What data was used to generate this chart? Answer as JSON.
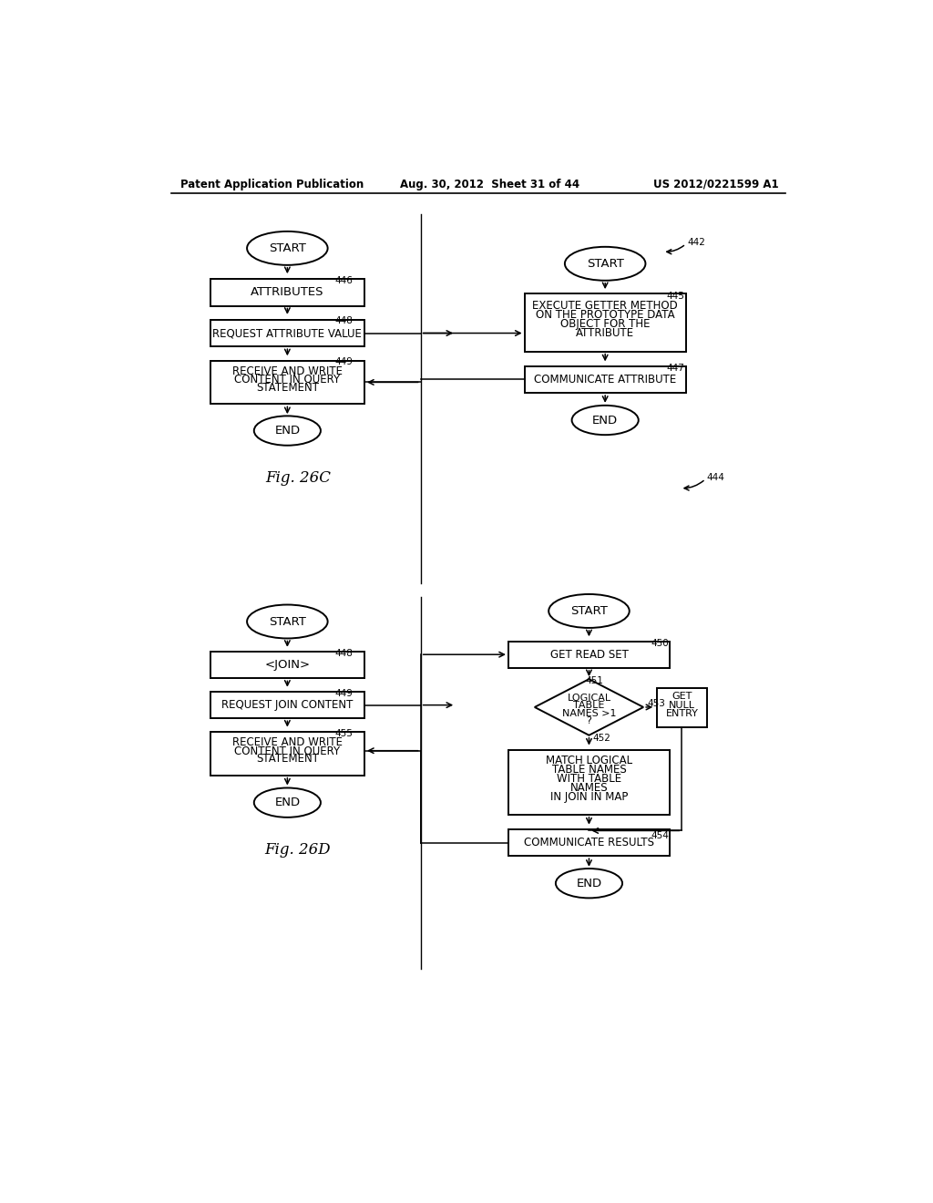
{
  "header_left": "Patent Application Publication",
  "header_mid": "Aug. 30, 2012  Sheet 31 of 44",
  "header_right": "US 2012/0221599 A1",
  "fig26c_label": "Fig. 26C",
  "fig26d_label": "Fig. 26D",
  "bg_color": "#ffffff"
}
